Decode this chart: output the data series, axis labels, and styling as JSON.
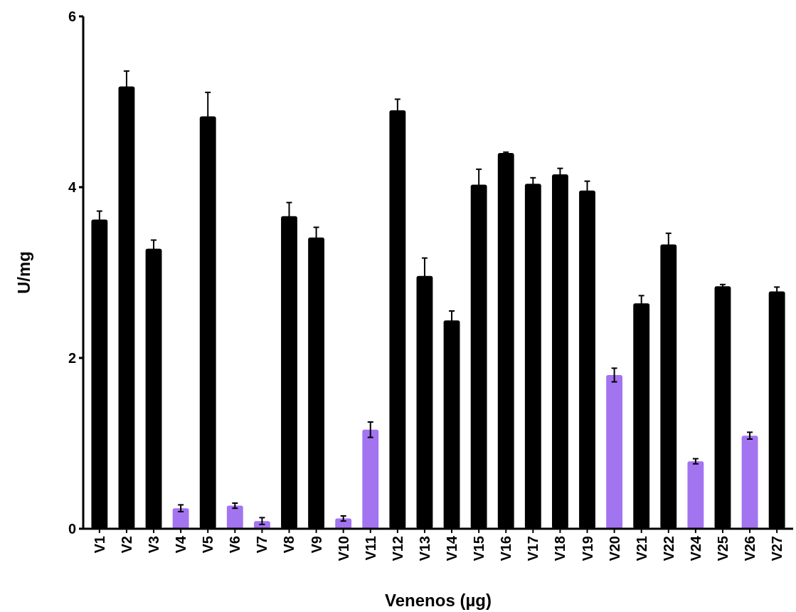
{
  "chart_data": {
    "type": "bar",
    "xlabel": "Venenos (µg)",
    "ylabel": "U/mg",
    "categories": [
      "V1",
      "V2",
      "V3",
      "V4",
      "V5",
      "V6",
      "V7",
      "V8",
      "V9",
      "V10",
      "V11",
      "V12",
      "V13",
      "V14",
      "V15",
      "V16",
      "V17",
      "V18",
      "V19",
      "V20",
      "V21",
      "V22",
      "V24",
      "V25",
      "V26",
      "V27"
    ],
    "values": [
      3.62,
      5.18,
      3.28,
      0.24,
      4.83,
      0.27,
      0.09,
      3.66,
      3.41,
      0.12,
      1.16,
      4.9,
      2.96,
      2.44,
      4.03,
      4.4,
      4.04,
      4.15,
      3.96,
      1.8,
      2.64,
      3.33,
      0.79,
      2.84,
      1.09,
      2.78
    ],
    "errors": [
      0.1,
      0.18,
      0.1,
      0.04,
      0.28,
      0.03,
      0.04,
      0.16,
      0.12,
      0.03,
      0.09,
      0.13,
      0.21,
      0.11,
      0.18,
      0.01,
      0.07,
      0.07,
      0.11,
      0.08,
      0.09,
      0.13,
      0.03,
      0.02,
      0.04,
      0.05
    ],
    "colors": [
      "#000000",
      "#000000",
      "#000000",
      "#a374f0",
      "#000000",
      "#a374f0",
      "#a374f0",
      "#000000",
      "#000000",
      "#a374f0",
      "#a374f0",
      "#000000",
      "#000000",
      "#000000",
      "#000000",
      "#000000",
      "#000000",
      "#000000",
      "#000000",
      "#a374f0",
      "#000000",
      "#000000",
      "#a374f0",
      "#000000",
      "#a374f0",
      "#000000"
    ],
    "ylim": [
      0,
      6
    ],
    "yticks": [
      0,
      2,
      4,
      6
    ]
  }
}
